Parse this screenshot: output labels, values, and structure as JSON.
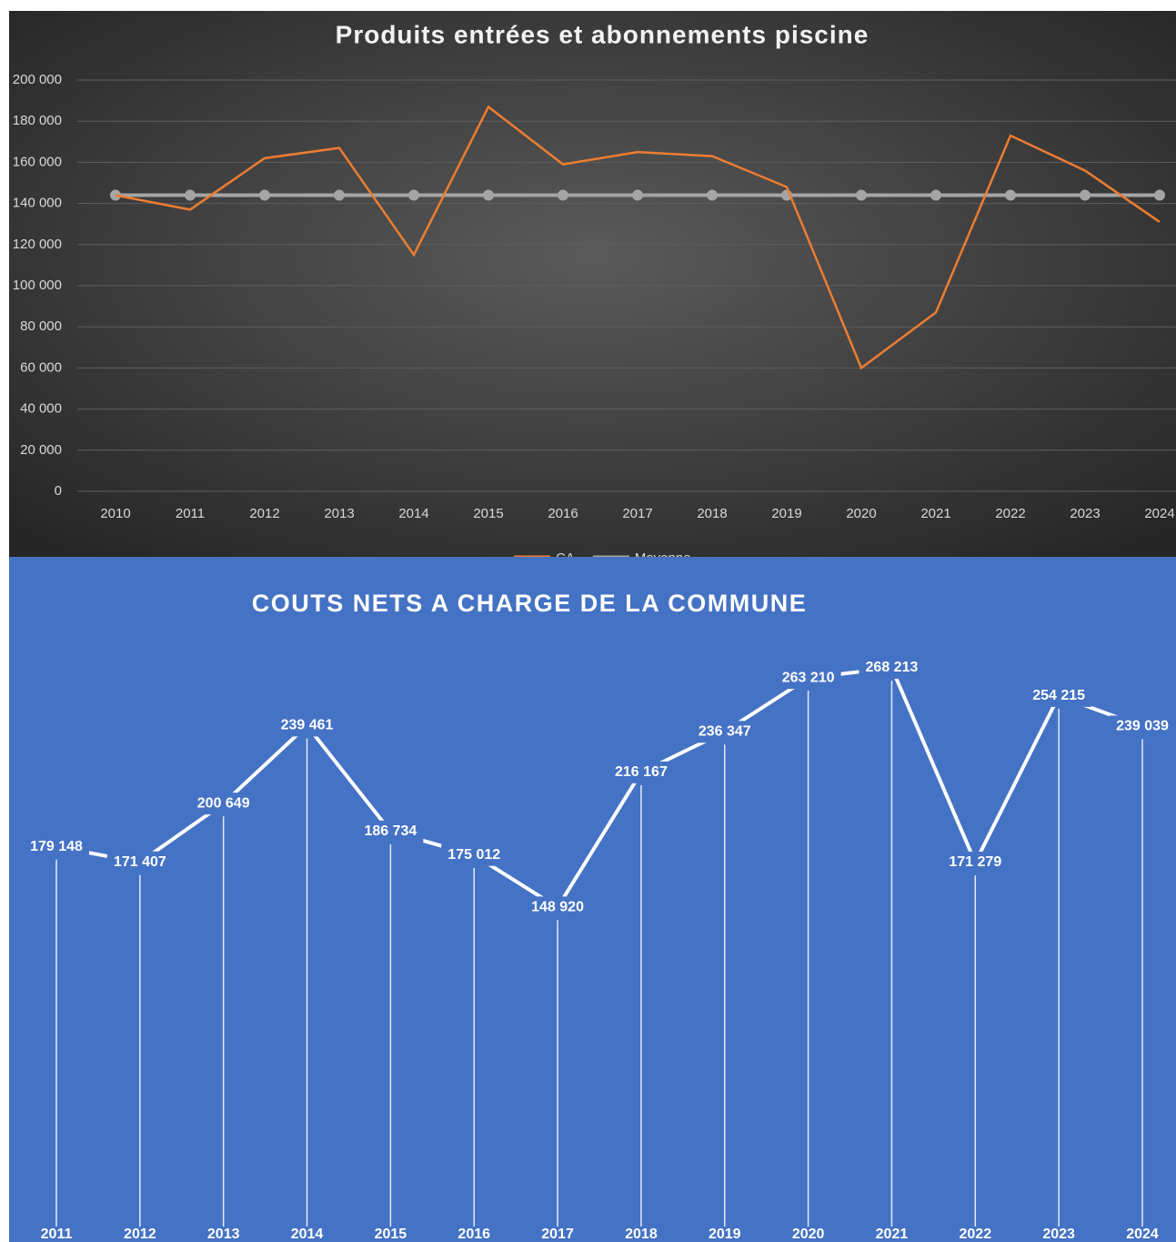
{
  "chart_data": [
    {
      "type": "line",
      "title": "Produits entrées et abonnements piscine",
      "categories": [
        "2010",
        "2011",
        "2012",
        "2013",
        "2014",
        "2015",
        "2016",
        "2017",
        "2018",
        "2019",
        "2020",
        "2021",
        "2022",
        "2023",
        "2024"
      ],
      "series": [
        {
          "name": "CA",
          "color": "#ed7d31",
          "values": [
            144000,
            137000,
            162000,
            167000,
            115000,
            187000,
            159000,
            165000,
            163000,
            148000,
            60000,
            87000,
            173000,
            156000,
            131000
          ]
        },
        {
          "name": "Moyenne",
          "color": "#a5a5a5",
          "values": [
            144000,
            144000,
            144000,
            144000,
            144000,
            144000,
            144000,
            144000,
            144000,
            144000,
            144000,
            144000,
            144000,
            144000,
            144000
          ]
        }
      ],
      "ylim": [
        0,
        200000
      ],
      "yticks": [
        {
          "value": 0,
          "label": "0"
        },
        {
          "value": 20000,
          "label": "20 000"
        },
        {
          "value": 40000,
          "label": "40 000"
        },
        {
          "value": 60000,
          "label": "60 000"
        },
        {
          "value": 80000,
          "label": "80 000"
        },
        {
          "value": 100000,
          "label": "100 000"
        },
        {
          "value": 120000,
          "label": "120 000"
        },
        {
          "value": 140000,
          "label": "140 000"
        },
        {
          "value": 160000,
          "label": "160 000"
        },
        {
          "value": 180000,
          "label": "180 000"
        },
        {
          "value": 200000,
          "label": "200 000"
        }
      ],
      "grid": true,
      "legend": "bottom"
    },
    {
      "type": "line",
      "title": "COUTS NETS A CHARGE DE LA COMMUNE",
      "categories": [
        "2011",
        "2012",
        "2013",
        "2014",
        "2015",
        "2016",
        "2017",
        "2018",
        "2019",
        "2020",
        "2021",
        "2022",
        "2023",
        "2024"
      ],
      "values": [
        179148,
        171407,
        200649,
        239461,
        186734,
        175012,
        148920,
        216167,
        236347,
        263210,
        268213,
        171279,
        254215,
        239039
      ],
      "value_labels": [
        "179 148",
        "171 407",
        "200 649",
        "239 461",
        "186 734",
        "175 012",
        "148 920",
        "216 167",
        "236 347",
        "263 210",
        "268 213",
        "171 279",
        "254 215",
        "239 039"
      ],
      "color": "#ffffff"
    }
  ]
}
